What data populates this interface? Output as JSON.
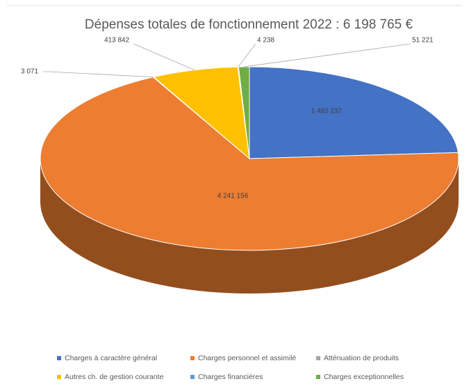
{
  "chart_data": {
    "type": "pie3d",
    "title": "Dépenses totales de fonctionnement 2022 : 6 198 765 €",
    "categories": [
      "Charges à caractère général",
      "Charges personnel et assimilé",
      "Atténuation de produits",
      "Autres ch. de gestion courante",
      "Charges financières",
      "Charges exceptionnelles"
    ],
    "values": [
      1485237,
      4241156,
      3071,
      413842,
      4238,
      51221
    ],
    "value_labels": [
      "1 485 237",
      "4 241 156",
      "3 071",
      "413 842",
      "4 238",
      "51 221"
    ],
    "colors": [
      "#4472c4",
      "#ed7d31",
      "#a5a5a5",
      "#ffc000",
      "#5b9bd5",
      "#70ad47"
    ],
    "legend": "bottom"
  }
}
